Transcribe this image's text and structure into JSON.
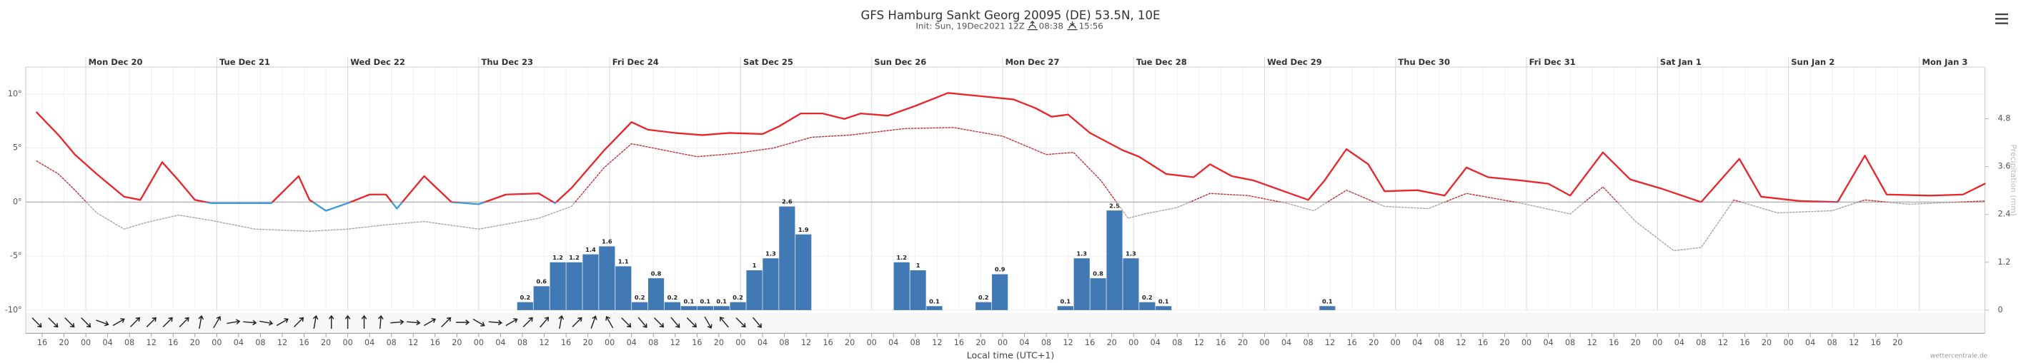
{
  "chart_data": {
    "type": "meteogram",
    "title": "GFS Hamburg Sankt Georg 20095 (DE) 53.5N, 10E",
    "init": "Init: Sun, 19Dec2021 12Z",
    "sunrise": "08:38",
    "sunset": "15:56",
    "xlabel": "Local time (UTC+1)",
    "credit": "wettercentrale.de",
    "y2label": "Precipitation (mm)",
    "grid": true,
    "xlim": [
      -11,
      348
    ],
    "ylim": [
      -10,
      12.5
    ],
    "y2lim": [
      0,
      6.1
    ],
    "yticks": [
      {
        "value": 10,
        "label": "10°"
      },
      {
        "value": 5,
        "label": "5°"
      },
      {
        "value": 0,
        "label": "0°"
      },
      {
        "value": -5,
        "label": "-5°"
      },
      {
        "value": -10,
        "label": "-10°"
      }
    ],
    "y2ticks": [
      0,
      1.2,
      2.4,
      3.6,
      4.8
    ],
    "day_ticks": [
      {
        "value": 0,
        "label": "Mon Dec 20"
      },
      {
        "value": 24,
        "label": "Tue Dec 21"
      },
      {
        "value": 48,
        "label": "Wed Dec 22"
      },
      {
        "value": 72,
        "label": "Thu Dec 23"
      },
      {
        "value": 96,
        "label": "Fri Dec 24"
      },
      {
        "value": 120,
        "label": "Sat Dec 25"
      },
      {
        "value": 144,
        "label": "Sun Dec 26"
      },
      {
        "value": 168,
        "label": "Mon Dec 27"
      },
      {
        "value": 192,
        "label": "Tue Dec 28"
      },
      {
        "value": 216,
        "label": "Wed Dec 29"
      },
      {
        "value": 240,
        "label": "Thu Dec 30"
      },
      {
        "value": 264,
        "label": "Fri Dec 31"
      },
      {
        "value": 288,
        "label": "Sat Jan 1"
      },
      {
        "value": 312,
        "label": "Sun Jan 2"
      },
      {
        "value": 336,
        "label": "Mon Jan 3"
      }
    ],
    "xticks": [
      {
        "value": -8,
        "label": "16"
      },
      {
        "value": -4,
        "label": "20"
      },
      {
        "value": 0,
        "label": "00"
      },
      {
        "value": 4,
        "label": "04"
      },
      {
        "value": 8,
        "label": "08"
      },
      {
        "value": 12,
        "label": "12"
      },
      {
        "value": 16,
        "label": "16"
      },
      {
        "value": 20,
        "label": "20"
      },
      {
        "value": 24,
        "label": "00"
      },
      {
        "value": 28,
        "label": "04"
      },
      {
        "value": 32,
        "label": "08"
      },
      {
        "value": 36,
        "label": "12"
      },
      {
        "value": 40,
        "label": "16"
      },
      {
        "value": 44,
        "label": "20"
      },
      {
        "value": 48,
        "label": "00"
      },
      {
        "value": 52,
        "label": "04"
      },
      {
        "value": 56,
        "label": "08"
      },
      {
        "value": 60,
        "label": "12"
      },
      {
        "value": 64,
        "label": "16"
      },
      {
        "value": 68,
        "label": "20"
      },
      {
        "value": 72,
        "label": "00"
      },
      {
        "value": 76,
        "label": "04"
      },
      {
        "value": 80,
        "label": "08"
      },
      {
        "value": 84,
        "label": "12"
      },
      {
        "value": 88,
        "label": "16"
      },
      {
        "value": 92,
        "label": "20"
      },
      {
        "value": 96,
        "label": "00"
      },
      {
        "value": 100,
        "label": "04"
      },
      {
        "value": 104,
        "label": "08"
      },
      {
        "value": 108,
        "label": "12"
      },
      {
        "value": 112,
        "label": "16"
      },
      {
        "value": 116,
        "label": "20"
      },
      {
        "value": 120,
        "label": "00"
      },
      {
        "value": 124,
        "label": "04"
      },
      {
        "value": 128,
        "label": "08"
      },
      {
        "value": 132,
        "label": "12"
      },
      {
        "value": 136,
        "label": "16"
      },
      {
        "value": 140,
        "label": "20"
      },
      {
        "value": 144,
        "label": "00"
      },
      {
        "value": 148,
        "label": "04"
      },
      {
        "value": 152,
        "label": "08"
      },
      {
        "value": 156,
        "label": "12"
      },
      {
        "value": 160,
        "label": "16"
      },
      {
        "value": 164,
        "label": "20"
      },
      {
        "value": 168,
        "label": "00"
      },
      {
        "value": 172,
        "label": "04"
      },
      {
        "value": 176,
        "label": "08"
      },
      {
        "value": 180,
        "label": "12"
      },
      {
        "value": 184,
        "label": "16"
      },
      {
        "value": 188,
        "label": "20"
      },
      {
        "value": 192,
        "label": "00"
      },
      {
        "value": 196,
        "label": "04"
      },
      {
        "value": 200,
        "label": "08"
      },
      {
        "value": 204,
        "label": "12"
      },
      {
        "value": 208,
        "label": "16"
      },
      {
        "value": 212,
        "label": "20"
      },
      {
        "value": 216,
        "label": "00"
      },
      {
        "value": 220,
        "label": "04"
      },
      {
        "value": 224,
        "label": "08"
      },
      {
        "value": 228,
        "label": "12"
      },
      {
        "value": 232,
        "label": "16"
      },
      {
        "value": 236,
        "label": "20"
      },
      {
        "value": 240,
        "label": "00"
      },
      {
        "value": 244,
        "label": "04"
      },
      {
        "value": 248,
        "label": "08"
      },
      {
        "value": 252,
        "label": "12"
      },
      {
        "value": 256,
        "label": "16"
      },
      {
        "value": 260,
        "label": "20"
      },
      {
        "value": 264,
        "label": "00"
      },
      {
        "value": 268,
        "label": "04"
      },
      {
        "value": 272,
        "label": "08"
      },
      {
        "value": 276,
        "label": "12"
      },
      {
        "value": 280,
        "label": "16"
      },
      {
        "value": 284,
        "label": "20"
      },
      {
        "value": 288,
        "label": "00"
      },
      {
        "value": 292,
        "label": "04"
      },
      {
        "value": 296,
        "label": "08"
      },
      {
        "value": 300,
        "label": "12"
      },
      {
        "value": 304,
        "label": "16"
      },
      {
        "value": 308,
        "label": "20"
      },
      {
        "value": 312,
        "label": "00"
      },
      {
        "value": 316,
        "label": "04"
      },
      {
        "value": 320,
        "label": "08"
      },
      {
        "value": 324,
        "label": "12"
      },
      {
        "value": 328,
        "label": "16"
      },
      {
        "value": 332,
        "label": "20"
      }
    ],
    "temperature": {
      "color": "#e8262b",
      "below_zero_color": "#3e9be0",
      "x": [
        -9,
        -5,
        -2,
        2,
        7,
        10,
        14,
        17,
        20,
        23,
        29,
        34,
        39,
        41,
        44,
        48,
        52,
        55,
        57,
        62,
        67,
        72,
        77,
        83,
        86,
        89,
        95,
        100,
        103,
        108,
        113,
        118,
        124,
        127,
        131,
        135,
        139,
        142,
        147,
        152,
        158,
        164,
        170,
        174,
        177,
        180,
        184,
        190,
        193,
        198,
        203,
        206,
        210,
        214,
        219,
        224,
        227,
        231,
        235,
        238,
        244,
        249,
        253,
        257,
        263,
        268,
        272,
        278,
        283,
        289,
        296,
        303,
        307,
        314,
        321,
        326,
        330,
        338,
        344,
        348
      ],
      "values": [
        8.3,
        6.2,
        4.4,
        2.6,
        0.5,
        0.2,
        3.7,
        2.0,
        0.2,
        -0.1,
        -0.1,
        -0.1,
        2.4,
        0.2,
        -0.8,
        -0.1,
        0.7,
        0.7,
        -0.6,
        2.4,
        0.0,
        -0.2,
        0.7,
        0.8,
        -0.1,
        1.3,
        4.8,
        7.4,
        6.7,
        6.4,
        6.2,
        6.4,
        6.3,
        7.0,
        8.2,
        8.2,
        7.7,
        8.2,
        8.0,
        8.9,
        10.1,
        9.8,
        9.5,
        8.7,
        7.9,
        8.1,
        6.4,
        4.8,
        4.2,
        2.6,
        2.3,
        3.5,
        2.4,
        2.0,
        1.1,
        0.2,
        2.0,
        4.9,
        3.5,
        1.0,
        1.1,
        0.6,
        3.2,
        2.3,
        2.0,
        1.7,
        0.6,
        4.6,
        2.1,
        1.2,
        0.0,
        4.0,
        0.5,
        0.1,
        0.0,
        4.3,
        0.7,
        0.6,
        0.7,
        1.7
      ]
    },
    "dew_point": {
      "color": "#c0393b",
      "below_zero_color": "#a9a9a9",
      "x": [
        -9,
        -5,
        -2,
        2,
        7,
        11,
        17,
        23,
        31,
        41,
        48,
        55,
        62,
        72,
        83,
        89,
        95,
        100,
        105,
        112,
        119,
        126,
        133,
        140,
        150,
        159,
        168,
        176,
        181,
        186,
        191,
        194,
        200,
        206,
        213,
        220,
        225,
        231,
        238,
        246,
        253,
        263,
        272,
        278,
        284,
        291,
        296,
        302,
        310,
        320,
        326,
        334,
        348
      ],
      "values": [
        3.8,
        2.6,
        1.1,
        -1.0,
        -2.5,
        -1.9,
        -1.2,
        -1.7,
        -2.5,
        -2.7,
        -2.5,
        -2.1,
        -1.8,
        -2.5,
        -1.5,
        -0.4,
        3.2,
        5.4,
        4.9,
        4.2,
        4.5,
        5.0,
        6.0,
        6.2,
        6.8,
        6.9,
        6.1,
        4.4,
        4.6,
        2.0,
        -1.5,
        -1.1,
        -0.5,
        0.8,
        0.6,
        -0.1,
        -0.8,
        1.1,
        -0.4,
        -0.6,
        0.8,
        -0.1,
        -1.1,
        1.4,
        -1.8,
        -4.5,
        -4.2,
        0.2,
        -1.0,
        -0.8,
        0.2,
        -0.2,
        0.1
      ]
    },
    "precipitation": {
      "color": "#4079b3",
      "axis": "y2",
      "x": [
        80.5,
        83.5,
        86.5,
        89.5,
        92.5,
        95.5,
        98.5,
        101.5,
        104.5,
        107.5,
        110.5,
        113.5,
        116.5,
        119.5,
        122.5,
        125.5,
        128.5,
        131.5,
        149.5,
        152.5,
        155.5,
        164.5,
        167.5,
        179.5,
        182.5,
        185.5,
        188.5,
        191.5,
        194.5,
        197.5,
        227.5
      ],
      "values": [
        0.2,
        0.6,
        1.2,
        1.2,
        1.4,
        1.6,
        1.1,
        0.2,
        0.8,
        0.2,
        0.1,
        0.1,
        0.1,
        0.2,
        1.0,
        1.3,
        2.6,
        1.9,
        1.2,
        1.0,
        0.1,
        0.2,
        0.9,
        0.1,
        1.3,
        0.8,
        2.5,
        1.3,
        0.2,
        0.1,
        0.1
      ]
    },
    "wind": {
      "color": "#222",
      "x": [
        -9,
        -6,
        -3,
        0,
        3,
        6,
        9,
        12,
        15,
        18,
        21,
        24,
        27,
        30,
        33,
        36,
        39,
        42,
        45,
        48,
        51,
        54,
        57,
        60,
        63,
        66,
        69,
        72,
        75,
        78,
        81,
        84,
        87,
        90,
        93,
        96,
        99,
        102,
        105,
        108,
        111,
        114,
        117,
        120,
        123
      ],
      "heading": [
        135,
        135,
        135,
        135,
        110,
        60,
        45,
        45,
        45,
        45,
        10,
        30,
        80,
        95,
        100,
        60,
        45,
        10,
        0,
        0,
        0,
        5,
        85,
        95,
        60,
        45,
        90,
        120,
        95,
        60,
        45,
        40,
        10,
        45,
        20,
        -30,
        135,
        140,
        135,
        140,
        135,
        150,
        -40,
        135,
        140
      ]
    }
  }
}
